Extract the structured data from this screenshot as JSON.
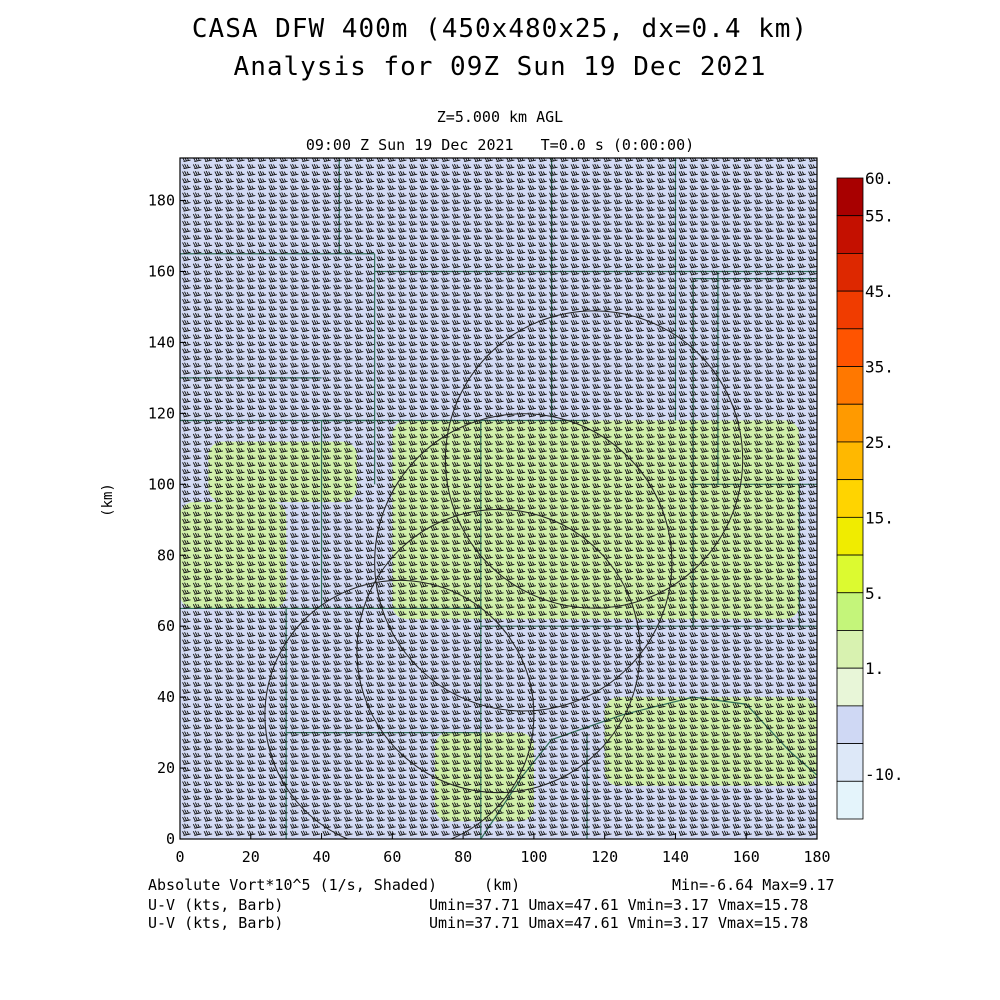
{
  "header": {
    "title_line1": "CASA DFW 400m (450x480x25, dx=0.4 km)",
    "title_line2": "Analysis for 09Z Sun 19 Dec 2021",
    "level": "Z=5.000 km AGL",
    "valid_time": "09:00 Z Sun 19 Dec 2021   T=0.0 s (0:00:00)"
  },
  "footer": {
    "field_label": "Absolute Vort*10^5 (1/s, Shaded)",
    "x_unit": "(km)",
    "minmax": "Min=-6.64 Max=9.17",
    "barb_label_1": "U-V (kts, Barb)",
    "barb_stats_1": "Umin=37.71 Umax=47.61 Vmin=3.17 Vmax=15.78",
    "barb_label_2": "U-V (kts, Barb)",
    "barb_stats_2": "Umin=37.71 Umax=47.61 Vmin=3.17 Vmax=15.78"
  },
  "chart_data": {
    "type": "heatmap",
    "xlabel": "",
    "ylabel": "(km)",
    "xlim": [
      0,
      180
    ],
    "ylim": [
      0,
      192
    ],
    "x_ticks": [
      "0",
      "20",
      "40",
      "60",
      "80",
      "100",
      "120",
      "140",
      "160",
      "180"
    ],
    "y_ticks": [
      "0",
      "20",
      "40",
      "60",
      "80",
      "100",
      "120",
      "140",
      "160",
      "180"
    ],
    "field": "Absolute Vort*10^5 (1/s)",
    "field_min": -6.64,
    "field_max": 9.17,
    "colorbar": {
      "labels": [
        "60.",
        "55.",
        "45.",
        "35.",
        "25.",
        "15.",
        "5.",
        "1.",
        "-10."
      ],
      "colors": [
        "#a80000",
        "#c41000",
        "#dd2800",
        "#f03c00",
        "#ff5400",
        "#ff7800",
        "#ff9a00",
        "#ffb800",
        "#ffd400",
        "#f0ec00",
        "#dcfa30",
        "#c4f57a",
        "#d8f2b0",
        "#e8f6d8",
        "#cfd8f4",
        "#dde8f8",
        "#e4f4fb"
      ]
    },
    "regions": [
      {
        "x": [
          8,
          50
        ],
        "y": [
          95,
          112
        ],
        "value": 5
      },
      {
        "x": [
          0,
          30
        ],
        "y": [
          65,
          95
        ],
        "value": 5
      },
      {
        "x": [
          60,
          175
        ],
        "y": [
          62,
          118
        ],
        "value": 5
      },
      {
        "x": [
          120,
          180
        ],
        "y": [
          15,
          40
        ],
        "value": 5
      },
      {
        "x": [
          72,
          100
        ],
        "y": [
          5,
          30
        ],
        "value": 5
      }
    ],
    "range_rings": [
      {
        "cx": 62,
        "cy": 35,
        "r": 38
      },
      {
        "cx": 90,
        "cy": 53,
        "r": 40
      },
      {
        "cx": 97,
        "cy": 78,
        "r": 42
      },
      {
        "cx": 117,
        "cy": 107,
        "r": 42
      }
    ],
    "barbs": {
      "u_min": 37.71,
      "u_max": 47.61,
      "v_min": 3.17,
      "v_max": 15.78,
      "unit": "kts"
    }
  }
}
